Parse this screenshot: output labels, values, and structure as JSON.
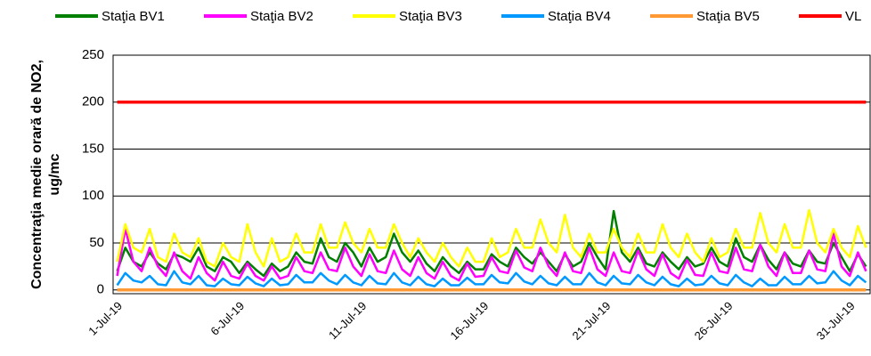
{
  "chart_data": {
    "type": "line",
    "y_label": [
      "Concentraţia medie orară de NO2,",
      "ug/mc"
    ],
    "categories": [
      "1-Jul-19",
      null,
      null,
      null,
      null,
      null,
      null,
      null,
      null,
      null,
      null,
      null,
      null,
      null,
      null,
      "6-Jul-19",
      null,
      null,
      null,
      null,
      null,
      null,
      null,
      null,
      null,
      null,
      null,
      null,
      null,
      null,
      "11-Jul-19",
      null,
      null,
      null,
      null,
      null,
      null,
      null,
      null,
      null,
      null,
      null,
      null,
      null,
      null,
      "16-Jul-19",
      null,
      null,
      null,
      null,
      null,
      null,
      null,
      null,
      null,
      null,
      null,
      null,
      null,
      null,
      "21-Jul-19",
      null,
      null,
      null,
      null,
      null,
      null,
      null,
      null,
      null,
      null,
      null,
      null,
      null,
      null,
      "26-Jul-19",
      null,
      null,
      null,
      null,
      null,
      null,
      null,
      null,
      null,
      null,
      null,
      null,
      null,
      null,
      "31-Jul-19",
      null,
      null
    ],
    "series": [
      {
        "name": "Staţia BV1",
        "color": "#008000",
        "values": [
          20,
          45,
          30,
          25,
          40,
          28,
          22,
          38,
          35,
          30,
          45,
          25,
          20,
          35,
          30,
          18,
          30,
          22,
          15,
          28,
          20,
          25,
          40,
          30,
          28,
          55,
          35,
          30,
          50,
          40,
          25,
          45,
          30,
          35,
          60,
          40,
          30,
          42,
          28,
          20,
          35,
          25,
          18,
          30,
          22,
          22,
          38,
          30,
          25,
          45,
          35,
          28,
          40,
          30,
          20,
          38,
          25,
          30,
          50,
          35,
          22,
          84,
          40,
          30,
          45,
          28,
          25,
          40,
          30,
          22,
          35,
          25,
          28,
          45,
          30,
          25,
          55,
          35,
          30,
          48,
          32,
          22,
          40,
          28,
          25,
          42,
          30,
          28,
          50,
          35,
          20,
          38,
          25
        ]
      },
      {
        "name": "Staţia BV2",
        "color": "#ff00ff",
        "values": [
          15,
          65,
          30,
          20,
          45,
          25,
          15,
          40,
          20,
          12,
          35,
          18,
          10,
          30,
          15,
          12,
          28,
          15,
          10,
          25,
          12,
          15,
          35,
          20,
          18,
          40,
          22,
          20,
          45,
          25,
          15,
          38,
          20,
          18,
          42,
          22,
          15,
          35,
          18,
          12,
          30,
          15,
          10,
          28,
          14,
          15,
          35,
          20,
          18,
          42,
          24,
          20,
          45,
          25,
          15,
          40,
          20,
          18,
          45,
          22,
          15,
          40,
          20,
          18,
          42,
          22,
          15,
          38,
          18,
          12,
          32,
          16,
          15,
          40,
          20,
          18,
          45,
          22,
          20,
          48,
          25,
          15,
          40,
          18,
          18,
          42,
          22,
          20,
          60,
          25,
          15,
          40,
          20
        ]
      },
      {
        "name": "Staţia BV3",
        "color": "#ffff00",
        "values": [
          30,
          70,
          45,
          40,
          65,
          35,
          30,
          60,
          40,
          35,
          55,
          30,
          25,
          50,
          35,
          30,
          70,
          40,
          25,
          55,
          30,
          35,
          60,
          40,
          40,
          70,
          45,
          45,
          72,
          50,
          40,
          65,
          45,
          45,
          70,
          50,
          35,
          55,
          40,
          30,
          50,
          35,
          25,
          45,
          30,
          30,
          55,
          35,
          40,
          65,
          45,
          45,
          75,
          50,
          40,
          80,
          45,
          35,
          60,
          40,
          40,
          65,
          45,
          35,
          60,
          40,
          40,
          70,
          45,
          35,
          60,
          40,
          30,
          55,
          35,
          40,
          65,
          45,
          45,
          82,
          50,
          40,
          70,
          45,
          45,
          85,
          50,
          40,
          65,
          45,
          35,
          68,
          45
        ]
      },
      {
        "name": "Staţia BV4",
        "color": "#0099ff",
        "values": [
          5,
          18,
          10,
          8,
          15,
          6,
          5,
          20,
          8,
          6,
          15,
          5,
          4,
          12,
          6,
          5,
          14,
          7,
          4,
          12,
          5,
          6,
          16,
          8,
          8,
          18,
          10,
          6,
          16,
          8,
          5,
          15,
          7,
          6,
          18,
          8,
          5,
          14,
          6,
          4,
          12,
          5,
          5,
          13,
          6,
          6,
          16,
          8,
          7,
          18,
          9,
          6,
          15,
          7,
          5,
          14,
          6,
          6,
          18,
          8,
          5,
          15,
          7,
          6,
          16,
          8,
          5,
          14,
          6,
          4,
          12,
          5,
          6,
          15,
          7,
          5,
          16,
          8,
          4,
          12,
          5,
          5,
          14,
          6,
          6,
          15,
          7,
          8,
          20,
          10,
          5,
          15,
          8
        ]
      },
      {
        "name": "Staţia BV5",
        "color": "#ff9933",
        "values": [
          0,
          0,
          0,
          0,
          0,
          0,
          0,
          0,
          0,
          0,
          0,
          0,
          0,
          0,
          0,
          0,
          0,
          0,
          0,
          0,
          0,
          0,
          0,
          0,
          0,
          0,
          0,
          0,
          0,
          0,
          0,
          0,
          0,
          0,
          0,
          0,
          0,
          0,
          0,
          0,
          0,
          0,
          0,
          0,
          0,
          0,
          0,
          0,
          0,
          0,
          0,
          0,
          0,
          0,
          0,
          0,
          0,
          0,
          0,
          0,
          0,
          0,
          0,
          0,
          0,
          0,
          0,
          0,
          0,
          0,
          0,
          0,
          0,
          0,
          0,
          0,
          0,
          0,
          0,
          0,
          0,
          0,
          0,
          0,
          0,
          0,
          0,
          0,
          0,
          0,
          0,
          0,
          0
        ]
      },
      {
        "name": "VL",
        "color": "#ff0000",
        "values": [
          200,
          200,
          200,
          200,
          200,
          200,
          200,
          200,
          200,
          200,
          200,
          200,
          200,
          200,
          200,
          200,
          200,
          200,
          200,
          200,
          200,
          200,
          200,
          200,
          200,
          200,
          200,
          200,
          200,
          200,
          200,
          200,
          200,
          200,
          200,
          200,
          200,
          200,
          200,
          200,
          200,
          200,
          200,
          200,
          200,
          200,
          200,
          200,
          200,
          200,
          200,
          200,
          200,
          200,
          200,
          200,
          200,
          200,
          200,
          200,
          200,
          200,
          200,
          200,
          200,
          200,
          200,
          200,
          200,
          200,
          200,
          200,
          200,
          200,
          200,
          200,
          200,
          200,
          200,
          200,
          200,
          200,
          200,
          200,
          200,
          200,
          200,
          200,
          200,
          200,
          200,
          200,
          200
        ]
      }
    ],
    "ylim": [
      -4,
      250
    ],
    "yticks": [
      0,
      50,
      100,
      150,
      200,
      250
    ],
    "grid": true,
    "legend": "top"
  }
}
